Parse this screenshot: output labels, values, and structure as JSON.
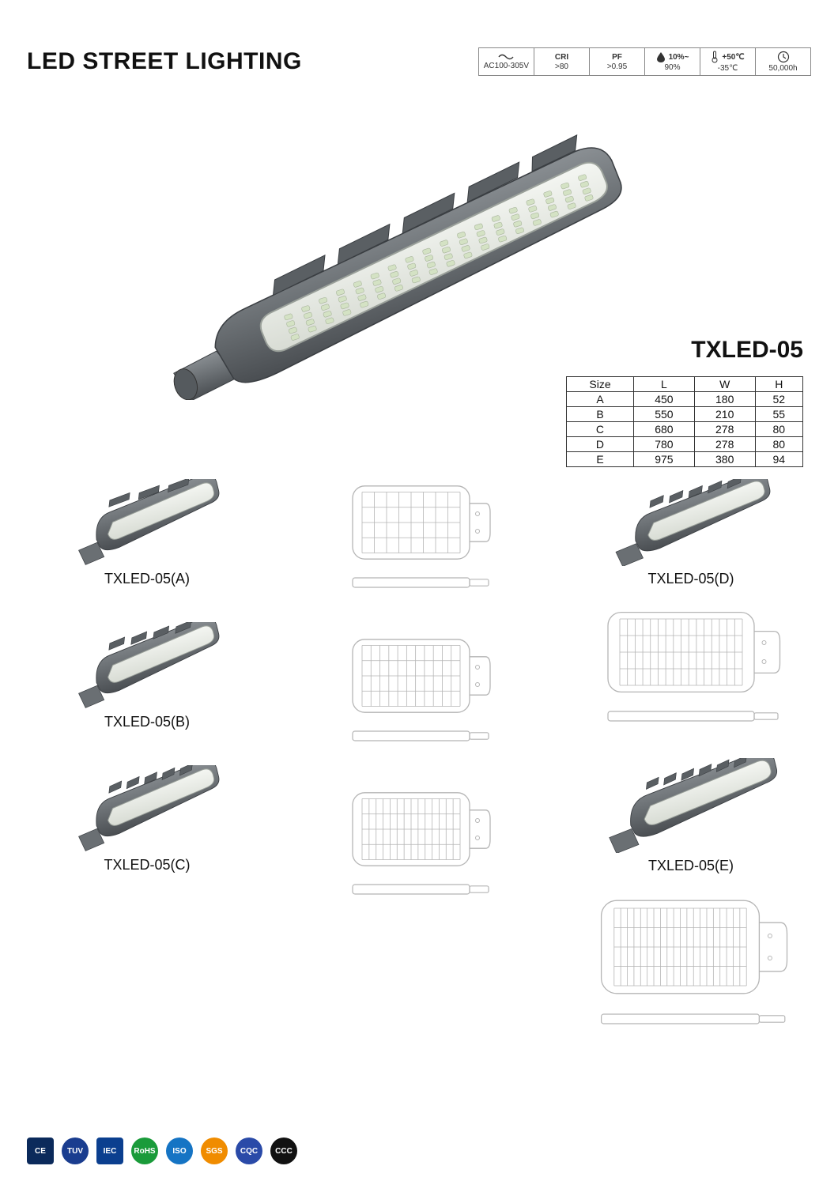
{
  "header": {
    "title": "LED STREET LIGHTING",
    "specs": [
      {
        "icon": "wave",
        "top": "",
        "bot": "AC100-305V"
      },
      {
        "icon": "",
        "top": "CRI",
        "bot": ">80"
      },
      {
        "icon": "",
        "top": "PF",
        "bot": ">0.95"
      },
      {
        "icon": "droplet",
        "top": "10%~",
        "bot": "90%"
      },
      {
        "icon": "thermo",
        "top": "+50℃",
        "bot": "-35℃"
      },
      {
        "icon": "clock",
        "top": "",
        "bot": "50,000h"
      }
    ]
  },
  "model": "TXLED-05",
  "size_table": {
    "columns": [
      "Size",
      "L",
      "W",
      "H"
    ],
    "rows": [
      [
        "A",
        "450",
        "180",
        "52"
      ],
      [
        "B",
        "550",
        "210",
        "55"
      ],
      [
        "C",
        "680",
        "278",
        "80"
      ],
      [
        "D",
        "780",
        "278",
        "80"
      ],
      [
        "E",
        "975",
        "380",
        "94"
      ]
    ]
  },
  "variants": {
    "left": [
      "TXLED-05(A)",
      "TXLED-05(B)",
      "TXLED-05(C)"
    ],
    "right": [
      "TXLED-05(D)",
      "TXLED-05(E)"
    ]
  },
  "certs": [
    {
      "label": "CE",
      "bg": "#0b2a5b",
      "shape": "rect"
    },
    {
      "label": "TUV",
      "bg": "#1a3d8f",
      "shape": "circle"
    },
    {
      "label": "IEC",
      "bg": "#0b3f8f",
      "shape": "rect"
    },
    {
      "label": "RoHS",
      "bg": "#1a9b3a",
      "shape": "leaf"
    },
    {
      "label": "ISO",
      "bg": "#1574c4",
      "shape": "circle"
    },
    {
      "label": "SGS",
      "bg": "#f08c00",
      "shape": "circle"
    },
    {
      "label": "CQC",
      "bg": "#2a4aa8",
      "shape": "circle"
    },
    {
      "label": "CCC",
      "bg": "#111111",
      "shape": "circle"
    }
  ],
  "colors": {
    "light_body": "#6a6f73",
    "light_body_dark": "#4a4e52",
    "light_panel": "#e8ece8",
    "led_dot": "#d4e2c4",
    "drawing_stroke": "#b5b5b5",
    "drawing_fill": "#ffffff"
  }
}
